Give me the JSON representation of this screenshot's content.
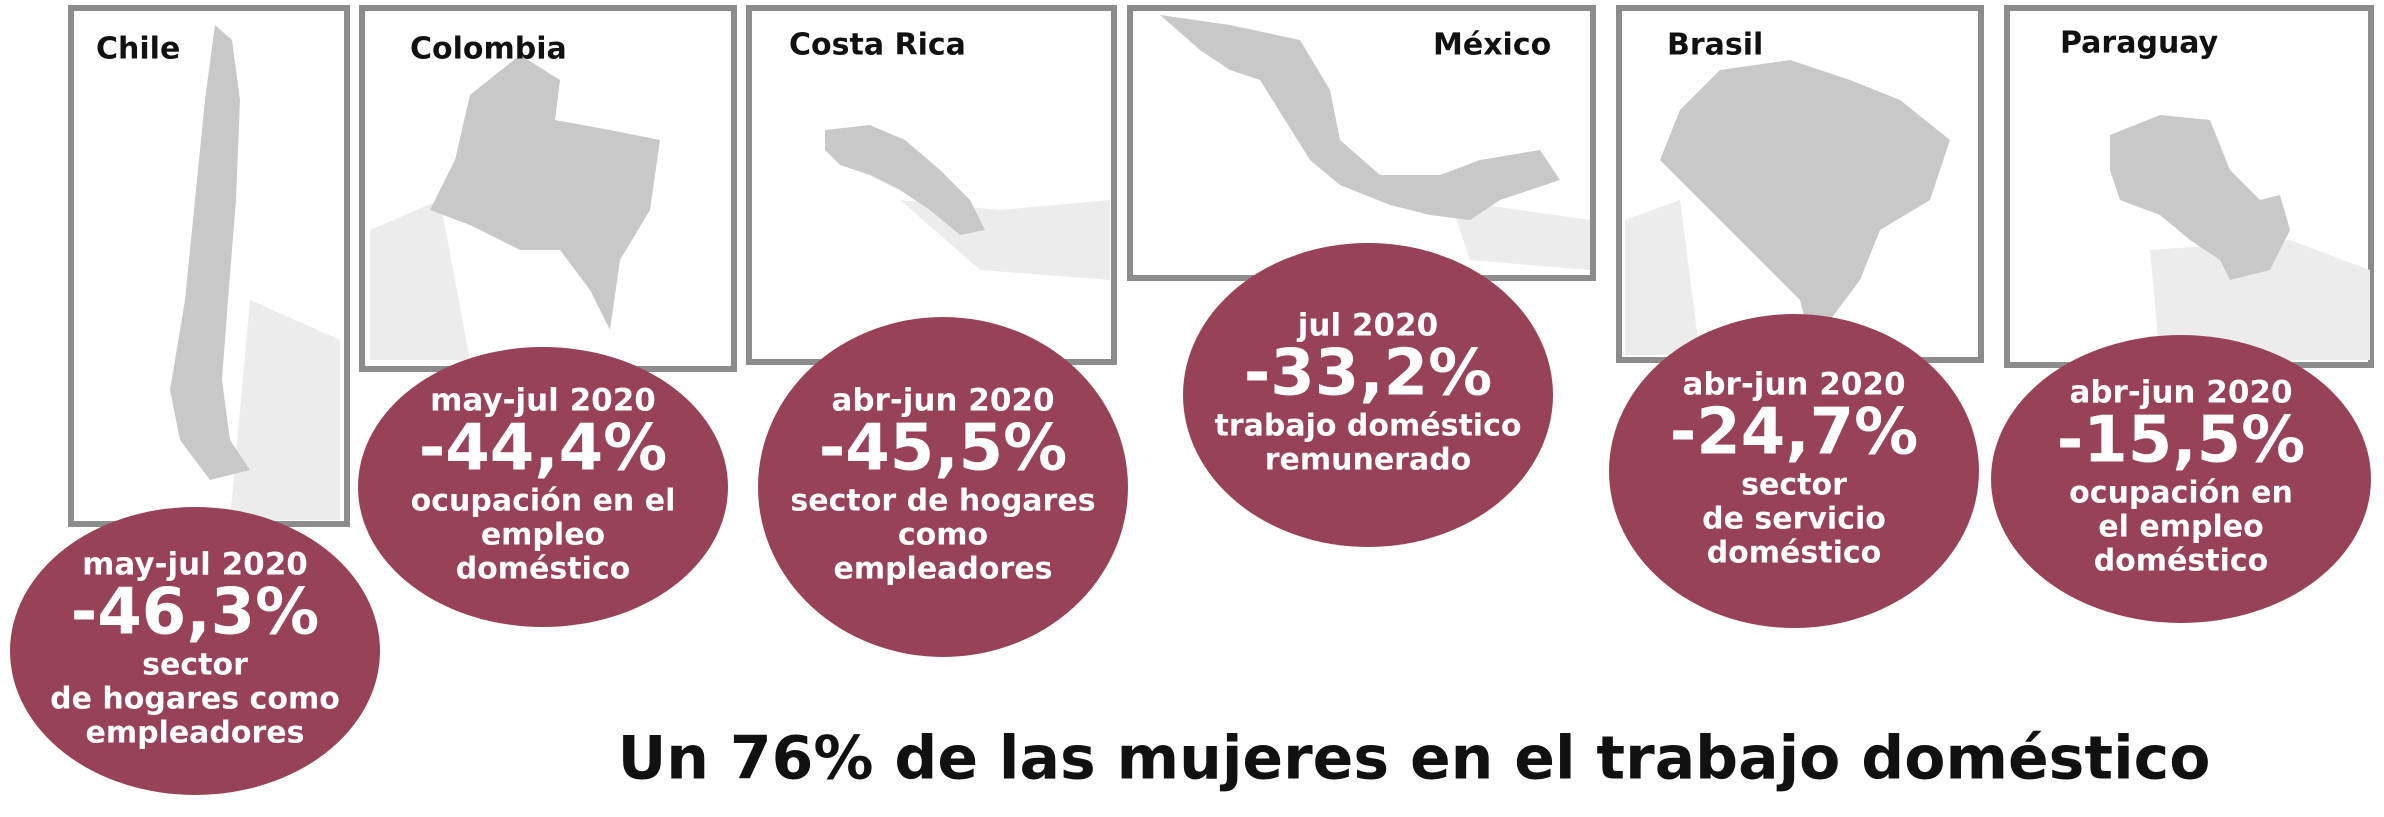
{
  "panels": [
    {
      "country": "Chile",
      "period": "may-jul 2020",
      "value": "-46,3%",
      "description": [
        "sector",
        "de hogares como",
        "empleadores"
      ]
    },
    {
      "country": "Colombia",
      "period": "may-jul 2020",
      "value": "-44,4%",
      "description": [
        "ocupación en el",
        "empleo",
        "doméstico"
      ]
    },
    {
      "country": "Costa Rica",
      "period": "abr-jun 2020",
      "value": "-45,5%",
      "description": [
        "sector de hogares",
        "como",
        "empleadores"
      ]
    },
    {
      "country": "México",
      "period": "jul 2020",
      "value": "-33,2%",
      "description": [
        "trabajo doméstico",
        "remunerado"
      ]
    },
    {
      "country": "Brasil",
      "period": "abr-jun 2020",
      "value": "-24,7%",
      "description": [
        "sector",
        "de servicio",
        "doméstico"
      ]
    },
    {
      "country": "Paraguay",
      "period": "abr-jun 2020",
      "value": "-15,5%",
      "description": [
        "ocupación en",
        "el empleo",
        "doméstico"
      ]
    }
  ],
  "footer": "Un 76% de las mujeres en el trabajo doméstico"
}
